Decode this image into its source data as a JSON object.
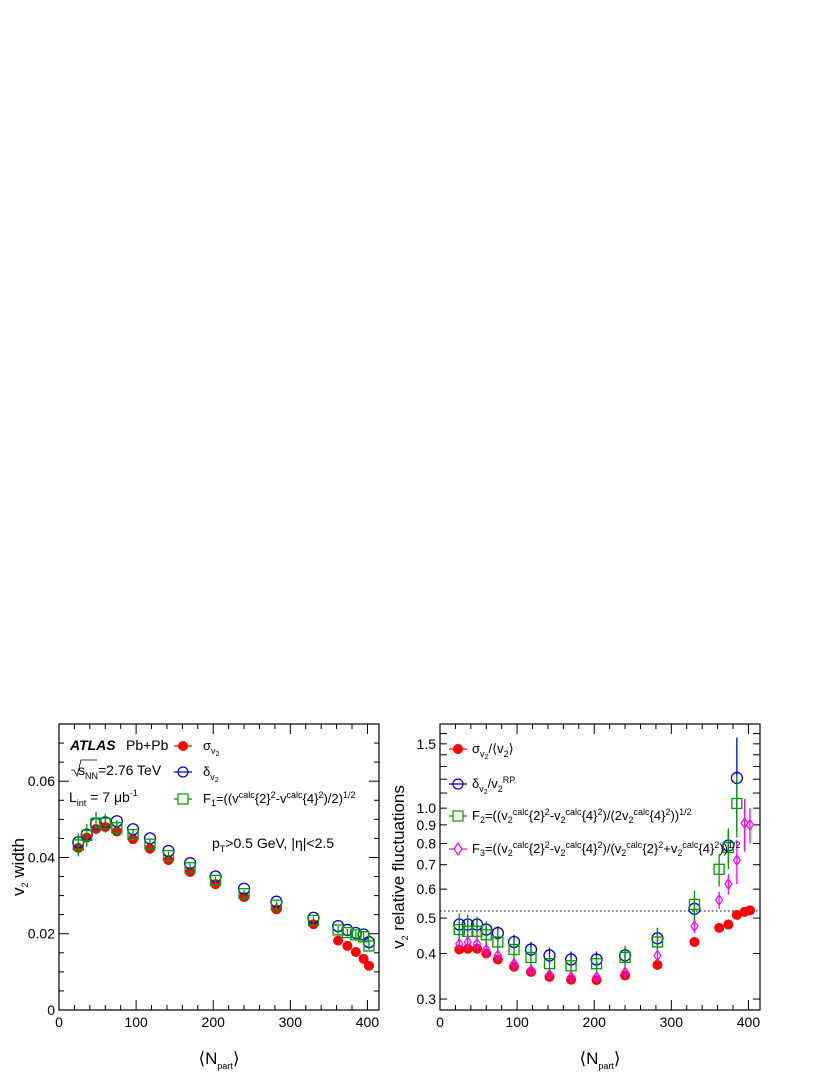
{
  "colors": {
    "red": "#ff0000",
    "blue": "#0000cc",
    "green": "#009900",
    "magenta": "#ff00ff"
  },
  "left_panel": {
    "ylabel": "v2 width",
    "experiment": "ATLAS",
    "system": "Pb+Pb",
    "energy": "=2.76 TeV",
    "lumi": "L",
    "lumi_sub": "int",
    "lumi_val": " = 7 μb",
    "lumi_sup": "-1",
    "cuts": "p",
    "cuts_sub": "T",
    "cuts_rest": ">0.5 GeV, |η|<2.5",
    "legend": {
      "sigma": "σ",
      "delta": "δ",
      "f1": "F",
      "f1_sub": "1",
      "f1_formula": "=((v",
      "calc": "calc",
      "two_sq": "{2}",
      "minus": "-v",
      "four_sq": "{4}",
      "f1_tail": ")/2)",
      "half": "1/2"
    }
  },
  "right_panel": {
    "ylabel": "v2 relative fluctuations",
    "legend": {
      "sigma": "σ",
      "delta": "δ",
      "rp": "RP",
      "f2": "F",
      "f3": "F",
      "half": "1/2",
      "calc": "calc"
    }
  },
  "chart_data": [
    {
      "type": "scatter",
      "xlabel": "⟨N_part⟩",
      "ylabel": "v_2 width",
      "xlim": [
        0,
        415
      ],
      "ylim": [
        0,
        0.075
      ],
      "xticks": [
        0,
        100,
        200,
        300,
        400
      ],
      "yticks": [
        0,
        0.02,
        0.04,
        0.06
      ],
      "ytick_labels": [
        "0",
        "0.02",
        "0.04",
        "0.06"
      ],
      "legend_position": "top-right",
      "series": [
        {
          "name": "σ_v2",
          "color": "red",
          "marker": "filled-circle",
          "x": [
            25,
            36,
            48,
            60,
            75,
            96,
            118,
            142,
            170,
            203,
            240,
            282,
            330,
            362,
            374,
            385,
            395,
            402
          ],
          "y": [
            0.0425,
            0.0452,
            0.0475,
            0.048,
            0.0468,
            0.0448,
            0.0423,
            0.0393,
            0.0362,
            0.033,
            0.0296,
            0.0264,
            0.0225,
            0.0182,
            0.0168,
            0.0152,
            0.0134,
            0.0116
          ]
        },
        {
          "name": "δ_v2",
          "color": "blue",
          "marker": "open-circle",
          "x": [
            25,
            36,
            48,
            60,
            75,
            96,
            118,
            142,
            170,
            203,
            240,
            282,
            330,
            362,
            374,
            385,
            395,
            402
          ],
          "y": [
            0.044,
            0.046,
            0.0488,
            0.0492,
            0.0495,
            0.0474,
            0.045,
            0.0417,
            0.0385,
            0.035,
            0.0318,
            0.0284,
            0.0242,
            0.022,
            0.021,
            0.0202,
            0.0198,
            0.0178
          ]
        },
        {
          "name": "F_1",
          "color": "green",
          "marker": "open-square",
          "x": [
            25,
            36,
            48,
            60,
            75,
            96,
            118,
            142,
            170,
            203,
            240,
            282,
            330,
            362,
            374,
            385,
            395,
            402
          ],
          "y": [
            0.0433,
            0.0458,
            0.049,
            0.049,
            0.0478,
            0.046,
            0.0435,
            0.0405,
            0.0373,
            0.034,
            0.0305,
            0.0275,
            0.0235,
            0.021,
            0.0203,
            0.0197,
            0.0192,
            0.0168
          ],
          "err": [
            0.003,
            0.003,
            0.003,
            0.0025,
            0.002,
            0.0015,
            0.0012,
            0.001,
            0.001,
            0.001,
            0.001,
            0.001,
            0.001,
            0.001,
            0.001,
            0.001,
            0.0015,
            0.001
          ]
        }
      ]
    },
    {
      "type": "scatter",
      "xlabel": "⟨N_part⟩",
      "ylabel": "v_2 relative fluctuations",
      "xscale": "linear",
      "yscale": "log",
      "xlim": [
        0,
        415
      ],
      "ylim": [
        0.28,
        1.7
      ],
      "xticks": [
        0,
        100,
        200,
        300,
        400
      ],
      "yticks": [
        0.3,
        0.4,
        0.5,
        0.6,
        0.7,
        0.8,
        0.9,
        1.0,
        1.5
      ],
      "ytick_labels": [
        "0.3",
        "0.4",
        "0.5",
        "0.6",
        "0.7",
        "0.8",
        "0.9",
        "1.0",
        "1.5"
      ],
      "reference_line": {
        "y": 0.5227,
        "style": "dotted"
      },
      "legend_position": "top-left",
      "series": [
        {
          "name": "σ_v2/⟨v2⟩",
          "color": "red",
          "marker": "filled-circle",
          "x": [
            25,
            36,
            48,
            60,
            75,
            96,
            118,
            142,
            170,
            203,
            240,
            282,
            330,
            362,
            374,
            385,
            395,
            402
          ],
          "y": [
            0.41,
            0.412,
            0.412,
            0.4,
            0.385,
            0.368,
            0.356,
            0.345,
            0.339,
            0.338,
            0.348,
            0.372,
            0.43,
            0.47,
            0.48,
            0.51,
            0.52,
            0.525
          ]
        },
        {
          "name": "δ_v2/v2^RP",
          "color": "blue",
          "marker": "open-circle",
          "x": [
            25,
            36,
            48,
            60,
            75,
            96,
            118,
            142,
            170,
            203,
            240,
            282,
            330,
            374,
            385
          ],
          "y": [
            0.48,
            0.48,
            0.48,
            0.465,
            0.455,
            0.43,
            0.41,
            0.395,
            0.385,
            0.385,
            0.395,
            0.44,
            0.53,
            0.79,
            1.21
          ],
          "err": [
            0.02,
            0.02,
            0.02,
            0.02,
            0.02,
            0.02,
            0.02,
            0.02,
            0.02,
            0.02,
            0.02,
            0.03,
            0.04,
            0.08,
            0.35
          ]
        },
        {
          "name": "F_2",
          "color": "green",
          "marker": "open-square",
          "x": [
            25,
            36,
            48,
            60,
            75,
            96,
            118,
            142,
            170,
            203,
            240,
            282,
            330,
            362,
            374,
            385
          ],
          "y": [
            0.465,
            0.46,
            0.46,
            0.45,
            0.43,
            0.41,
            0.39,
            0.375,
            0.37,
            0.375,
            0.39,
            0.43,
            0.545,
            0.68,
            0.78,
            1.03
          ],
          "err": [
            0.05,
            0.05,
            0.045,
            0.04,
            0.035,
            0.03,
            0.025,
            0.02,
            0.02,
            0.02,
            0.03,
            0.04,
            0.05,
            0.07,
            0.1,
            0.2
          ]
        },
        {
          "name": "F_3",
          "color": "magenta",
          "marker": "open-diamond",
          "x": [
            25,
            36,
            48,
            60,
            75,
            96,
            118,
            142,
            170,
            203,
            240,
            282,
            330,
            362,
            374,
            385,
            395,
            402
          ],
          "y": [
            0.425,
            0.43,
            0.425,
            0.41,
            0.395,
            0.375,
            0.36,
            0.35,
            0.345,
            0.345,
            0.355,
            0.395,
            0.475,
            0.56,
            0.62,
            0.72,
            0.91,
            0.9
          ],
          "err": [
            0.02,
            0.02,
            0.02,
            0.02,
            0.015,
            0.015,
            0.01,
            0.01,
            0.01,
            0.01,
            0.01,
            0.015,
            0.02,
            0.03,
            0.04,
            0.1,
            0.15,
            0.1
          ]
        }
      ]
    }
  ]
}
